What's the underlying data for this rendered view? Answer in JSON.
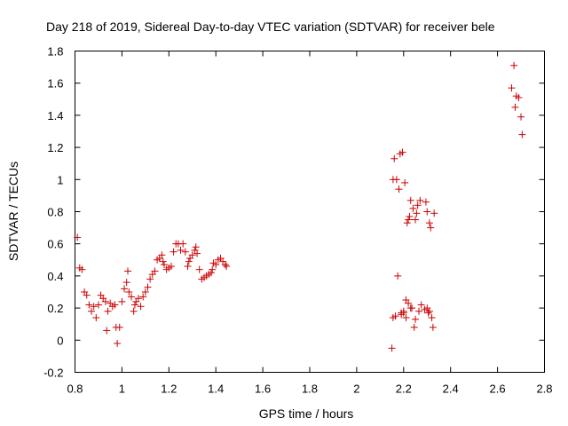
{
  "chart_data": {
    "type": "scatter",
    "title": "Day 218 of 2019, Sidereal Day-to-day VTEC variation (SDTVAR) for receiver bele",
    "xlabel": "GPS time / hours",
    "ylabel": "SDTVAR / TECUs",
    "xlim": [
      0.8,
      2.8
    ],
    "ylim": [
      -0.2,
      1.8
    ],
    "x_ticks": [
      "0.8",
      "1",
      "1.2",
      "1.4",
      "1.6",
      "1.8",
      "2",
      "2.2",
      "2.4",
      "2.6",
      "2.8"
    ],
    "y_ticks": [
      "-0.2",
      "0",
      "0.2",
      "0.4",
      "0.6",
      "0.8",
      "1",
      "1.2",
      "1.4",
      "1.6",
      "1.8"
    ],
    "grid": false,
    "marker": "+",
    "marker_color": "#cc0000",
    "series": [
      {
        "name": "SDTVAR",
        "points": [
          [
            0.81,
            0.64
          ],
          [
            0.82,
            0.45
          ],
          [
            0.83,
            0.44
          ],
          [
            0.84,
            0.3
          ],
          [
            0.85,
            0.28
          ],
          [
            0.86,
            0.22
          ],
          [
            0.87,
            0.18
          ],
          [
            0.88,
            0.21
          ],
          [
            0.89,
            0.14
          ],
          [
            0.9,
            0.22
          ],
          [
            0.91,
            0.28
          ],
          [
            0.92,
            0.26
          ],
          [
            0.93,
            0.24
          ],
          [
            0.935,
            0.06
          ],
          [
            0.94,
            0.18
          ],
          [
            0.95,
            0.23
          ],
          [
            0.96,
            0.21
          ],
          [
            0.97,
            0.22
          ],
          [
            0.975,
            0.08
          ],
          [
            0.98,
            -0.02
          ],
          [
            0.99,
            0.08
          ],
          [
            1.0,
            0.24
          ],
          [
            1.01,
            0.32
          ],
          [
            1.02,
            0.36
          ],
          [
            1.025,
            0.43
          ],
          [
            1.03,
            0.3
          ],
          [
            1.04,
            0.27
          ],
          [
            1.05,
            0.18
          ],
          [
            1.055,
            0.22
          ],
          [
            1.06,
            0.24
          ],
          [
            1.07,
            0.26
          ],
          [
            1.08,
            0.21
          ],
          [
            1.09,
            0.27
          ],
          [
            1.1,
            0.3
          ],
          [
            1.11,
            0.33
          ],
          [
            1.12,
            0.38
          ],
          [
            1.13,
            0.41
          ],
          [
            1.14,
            0.43
          ],
          [
            1.15,
            0.5
          ],
          [
            1.16,
            0.51
          ],
          [
            1.17,
            0.53
          ],
          [
            1.175,
            0.49
          ],
          [
            1.18,
            0.47
          ],
          [
            1.19,
            0.44
          ],
          [
            1.2,
            0.45
          ],
          [
            1.21,
            0.46
          ],
          [
            1.22,
            0.55
          ],
          [
            1.23,
            0.6
          ],
          [
            1.24,
            0.6
          ],
          [
            1.25,
            0.56
          ],
          [
            1.26,
            0.6
          ],
          [
            1.27,
            0.55
          ],
          [
            1.28,
            0.46
          ],
          [
            1.285,
            0.49
          ],
          [
            1.29,
            0.51
          ],
          [
            1.3,
            0.53
          ],
          [
            1.31,
            0.56
          ],
          [
            1.315,
            0.58
          ],
          [
            1.32,
            0.54
          ],
          [
            1.33,
            0.44
          ],
          [
            1.34,
            0.38
          ],
          [
            1.35,
            0.39
          ],
          [
            1.36,
            0.4
          ],
          [
            1.37,
            0.41
          ],
          [
            1.38,
            0.42
          ],
          [
            1.385,
            0.44
          ],
          [
            1.39,
            0.48
          ],
          [
            1.4,
            0.47
          ],
          [
            1.41,
            0.5
          ],
          [
            1.42,
            0.51
          ],
          [
            1.43,
            0.49
          ],
          [
            1.44,
            0.47
          ],
          [
            1.445,
            0.46
          ],
          [
            2.15,
            -0.05
          ],
          [
            2.155,
            1.0
          ],
          [
            2.16,
            1.13
          ],
          [
            2.165,
            0.15
          ],
          [
            2.17,
            1.0
          ],
          [
            2.175,
            0.4
          ],
          [
            2.18,
            0.94
          ],
          [
            2.185,
            1.16
          ],
          [
            2.19,
            0.16
          ],
          [
            2.195,
            1.17
          ],
          [
            2.2,
            0.18
          ],
          [
            2.205,
            0.98
          ],
          [
            2.21,
            0.25
          ],
          [
            2.215,
            0.73
          ],
          [
            2.22,
            0.75
          ],
          [
            2.225,
            0.77
          ],
          [
            2.23,
            0.87
          ],
          [
            2.235,
            0.2
          ],
          [
            2.24,
            0.82
          ],
          [
            2.245,
            0.08
          ],
          [
            2.25,
            0.75
          ],
          [
            2.255,
            0.79
          ],
          [
            2.26,
            0.84
          ],
          [
            2.265,
            0.18
          ],
          [
            2.27,
            0.87
          ],
          [
            2.275,
            0.22
          ],
          [
            2.29,
            0.19
          ],
          [
            2.295,
            0.86
          ],
          [
            2.3,
            0.8
          ],
          [
            2.305,
            0.17
          ],
          [
            2.31,
            0.73
          ],
          [
            2.315,
            0.7
          ],
          [
            2.32,
            0.14
          ],
          [
            2.325,
            0.08
          ],
          [
            2.33,
            0.79
          ],
          [
            2.155,
            0.14
          ],
          [
            2.19,
            0.17
          ],
          [
            2.2,
            0.17
          ],
          [
            2.21,
            0.14
          ],
          [
            2.22,
            0.23
          ],
          [
            2.23,
            0.2
          ],
          [
            2.25,
            0.13
          ],
          [
            2.3,
            0.2
          ],
          [
            2.31,
            0.18
          ],
          [
            2.66,
            1.57
          ],
          [
            2.67,
            1.71
          ],
          [
            2.675,
            1.45
          ],
          [
            2.68,
            1.52
          ],
          [
            2.69,
            1.51
          ],
          [
            2.7,
            1.39
          ],
          [
            2.705,
            1.28
          ]
        ]
      }
    ]
  }
}
